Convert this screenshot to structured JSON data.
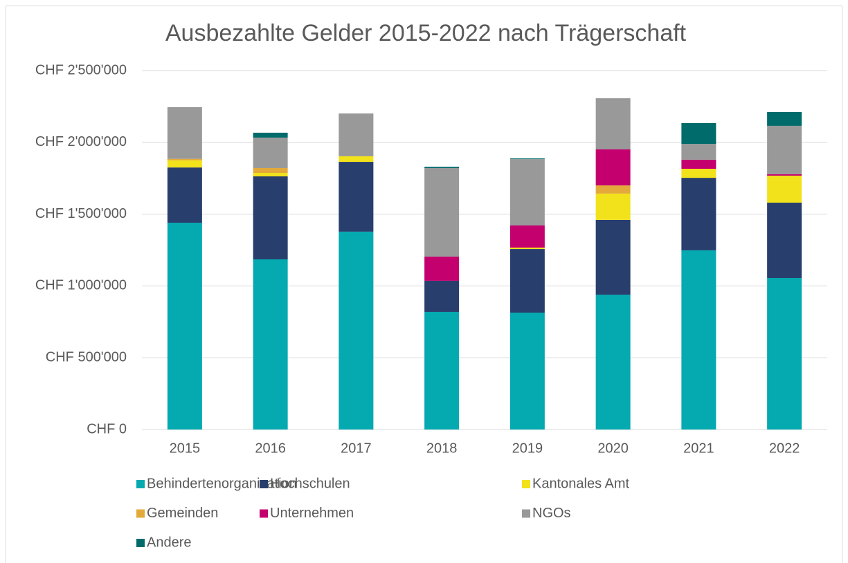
{
  "chart_data": {
    "type": "stacked_bar",
    "title": "Ausbezahlte Gelder 2015-2022 nach Trägerschaft",
    "categories": [
      "2015",
      "2016",
      "2017",
      "2018",
      "2019",
      "2020",
      "2021",
      "2022"
    ],
    "series": [
      {
        "name": "Behindertenorganisation",
        "color": "#05a9b0",
        "values": [
          1440000,
          1185000,
          1378000,
          819000,
          814000,
          939000,
          1248000,
          1055000
        ]
      },
      {
        "name": "Hochschulen",
        "color": "#283f6e",
        "values": [
          385000,
          578000,
          486000,
          217000,
          443000,
          521000,
          505000,
          525000
        ]
      },
      {
        "name": "Kantonales Amt",
        "color": "#f2e21b",
        "values": [
          50000,
          24000,
          39000,
          0,
          10000,
          183000,
          63000,
          188000
        ]
      },
      {
        "name": "Gemeinden",
        "color": "#e3a93a",
        "values": [
          10000,
          34000,
          0,
          0,
          0,
          57000,
          0,
          0
        ]
      },
      {
        "name": "Unternehmen",
        "color": "#c4006e",
        "values": [
          0,
          0,
          0,
          168000,
          154000,
          251000,
          63000,
          10000
        ]
      },
      {
        "name": "NGOs",
        "color": "#999999",
        "values": [
          360000,
          212000,
          298000,
          617000,
          462000,
          356000,
          110000,
          337000
        ]
      },
      {
        "name": "Andere",
        "color": "#006b6b",
        "values": [
          0,
          34000,
          0,
          9000,
          5000,
          0,
          145000,
          96000
        ]
      }
    ],
    "ylim": [
      0,
      2500000
    ],
    "yticks": [
      {
        "value": 0,
        "label": "CHF 0"
      },
      {
        "value": 500000,
        "label": "CHF 500'000"
      },
      {
        "value": 1000000,
        "label": "CHF 1'000'000"
      },
      {
        "value": 1500000,
        "label": "CHF 1'500'000"
      },
      {
        "value": 2000000,
        "label": "CHF 2'000'000"
      },
      {
        "value": 2500000,
        "label": "CHF 2'500'000"
      }
    ],
    "grid": true,
    "legend": "bottom"
  }
}
